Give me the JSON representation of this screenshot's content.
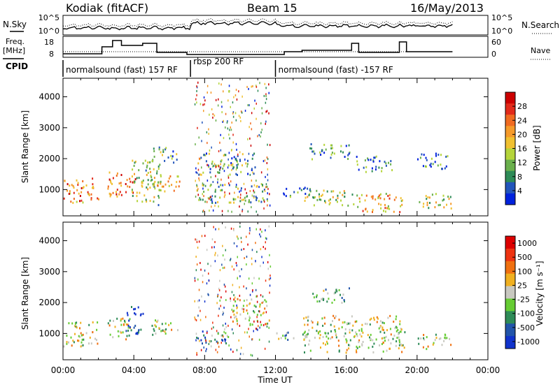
{
  "header": {
    "station": "Kodiak (fitACF)",
    "beam": "Beam 15",
    "date": "16/May/2013"
  },
  "left_labels": {
    "nsky": "N.Sky",
    "freq_line1": "Freq.",
    "freq_line2": "[MHz]",
    "cpid": "CPID"
  },
  "right_labels": {
    "nsearch": "N.Search",
    "nave": "Nave"
  },
  "strip_ticks": {
    "noise_top": "10^5",
    "noise_bottom": "10^0",
    "freq_top": "18",
    "freq_bottom": "8",
    "nave_top": "60",
    "nave_bottom": "0"
  },
  "cpid_segments": [
    {
      "label": "normalsound (fast) 157 RF",
      "start_hour": 0.0,
      "end_hour": 7.2
    },
    {
      "label": "rbsp 200 RF",
      "start_hour": 7.2,
      "end_hour": 12.0
    },
    {
      "label": "normalsound (fast) -157 RF",
      "start_hour": 12.0,
      "end_hour": 21.9
    }
  ],
  "chart_data": [
    {
      "type": "heatmap",
      "panel": "power",
      "xlabel": "",
      "ylabel": "Slant Range [km]",
      "xlim": [
        0,
        24
      ],
      "ylim": [
        150,
        4600
      ],
      "y_ticks": [
        1000,
        2000,
        3000,
        4000
      ],
      "colorbar_label": "Power [dB]",
      "colorbar_ticks": [
        "4",
        "8",
        "12",
        "16",
        "20",
        "24",
        "28"
      ],
      "colors": [
        "#0022dd",
        "#2255bb",
        "#2e8b57",
        "#6ab04c",
        "#b5d43a",
        "#f0c030",
        "#f59a2a",
        "#f06a20",
        "#e22a1a",
        "#cc0000"
      ],
      "echo_regions": [
        {
          "x0": 0.0,
          "x1": 2.0,
          "y0": 600,
          "y1": 1400,
          "level": 0.7
        },
        {
          "x0": 2.5,
          "x1": 4.2,
          "y0": 800,
          "y1": 1600,
          "level": 0.75
        },
        {
          "x0": 3.8,
          "x1": 5.5,
          "y0": 500,
          "y1": 2000,
          "level": 0.4
        },
        {
          "x0": 5.0,
          "x1": 6.4,
          "y0": 1900,
          "y1": 2400,
          "level": 0.3
        },
        {
          "x0": 4.8,
          "x1": 6.6,
          "y0": 950,
          "y1": 1500,
          "level": 0.55
        },
        {
          "x0": 7.4,
          "x1": 11.5,
          "y0": 600,
          "y1": 1200,
          "level": 0.35
        },
        {
          "x0": 7.6,
          "x1": 11.0,
          "y0": 1500,
          "y1": 2200,
          "level": 0.3
        },
        {
          "x0": 12.0,
          "x1": 14.0,
          "y0": 800,
          "y1": 1100,
          "level": 0.25
        },
        {
          "x0": 13.9,
          "x1": 16.2,
          "y0": 2000,
          "y1": 2500,
          "level": 0.25
        },
        {
          "x0": 13.5,
          "x1": 16.5,
          "y0": 500,
          "y1": 1000,
          "level": 0.45
        },
        {
          "x0": 16.5,
          "x1": 18.7,
          "y0": 1600,
          "y1": 2100,
          "level": 0.25
        },
        {
          "x0": 16.5,
          "x1": 19.3,
          "y0": 300,
          "y1": 900,
          "level": 0.6
        },
        {
          "x0": 20.0,
          "x1": 21.9,
          "y0": 1700,
          "y1": 2200,
          "level": 0.25
        },
        {
          "x0": 20.0,
          "x1": 21.9,
          "y0": 400,
          "y1": 900,
          "level": 0.45
        }
      ]
    },
    {
      "type": "heatmap",
      "panel": "velocity",
      "xlabel": "Time UT",
      "ylabel": "Slant Range [km]",
      "xlim": [
        0,
        24
      ],
      "ylim": [
        150,
        4600
      ],
      "y_ticks": [
        1000,
        2000,
        3000,
        4000
      ],
      "x_ticks": [
        "00:00",
        "04:00",
        "08:00",
        "12:00",
        "16:00",
        "20:00",
        "00:00"
      ],
      "colorbar_label": "Velocity [m s⁻¹]",
      "colorbar_ticks": [
        "1000",
        "500",
        "100",
        "25",
        "-25",
        "-100",
        "-500",
        "-1000"
      ],
      "colors": [
        "#1133cc",
        "#2255aa",
        "#2e8b57",
        "#66cc33",
        "#c8c8c0",
        "#f0b020",
        "#f07010",
        "#ee3311",
        "#dd0000"
      ],
      "echo_regions": [
        {
          "x0": 0.0,
          "x1": 2.0,
          "y0": 600,
          "y1": 1400,
          "level": 0.5
        },
        {
          "x0": 2.5,
          "x1": 3.8,
          "y0": 800,
          "y1": 1600,
          "level": 0.5
        },
        {
          "x0": 3.5,
          "x1": 4.5,
          "y0": 1000,
          "y1": 1900,
          "level": 0.05
        },
        {
          "x0": 5.0,
          "x1": 6.6,
          "y0": 950,
          "y1": 1500,
          "level": 0.5
        },
        {
          "x0": 7.4,
          "x1": 9.5,
          "y0": 700,
          "y1": 1100,
          "level": 0.3
        },
        {
          "x0": 9.5,
          "x1": 11.5,
          "y0": 1300,
          "y1": 2200,
          "level": 0.55
        },
        {
          "x0": 12.0,
          "x1": 14.0,
          "y0": 800,
          "y1": 1100,
          "level": 0.4
        },
        {
          "x0": 14.0,
          "x1": 16.2,
          "y0": 2000,
          "y1": 2500,
          "level": 0.35
        },
        {
          "x0": 13.5,
          "x1": 19.3,
          "y0": 400,
          "y1": 1600,
          "level": 0.5
        },
        {
          "x0": 20.0,
          "x1": 21.9,
          "y0": 500,
          "y1": 1000,
          "level": 0.5
        }
      ]
    }
  ]
}
